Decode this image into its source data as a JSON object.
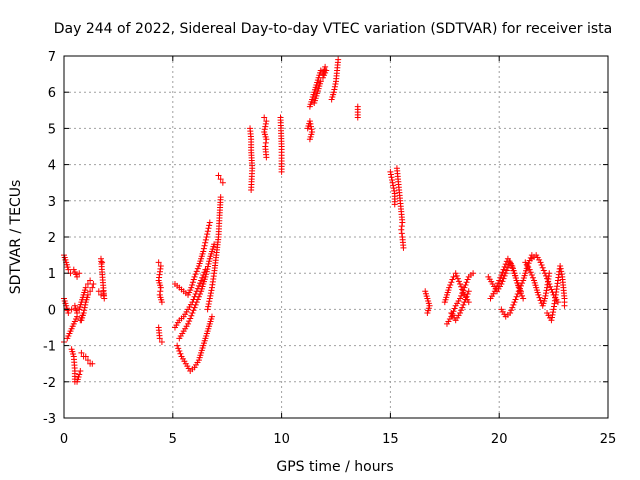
{
  "chart_data": {
    "type": "scatter",
    "title": "Day 244 of 2022, Sidereal Day-to-day VTEC variation (SDTVAR) for receiver ista",
    "xlabel": "GPS time / hours",
    "ylabel": "SDTVAR / TECUs",
    "xlim": [
      0,
      25
    ],
    "ylim": [
      -3,
      7
    ],
    "xticks": [
      "0",
      "5",
      "10",
      "15",
      "20",
      "25"
    ],
    "yticks": [
      "-3",
      "-2",
      "-1",
      "0",
      "1",
      "2",
      "3",
      "4",
      "5",
      "6",
      "7"
    ],
    "grid": true,
    "marker": "plus",
    "color": "#ff0000",
    "series": [
      {
        "name": "SDTVAR",
        "segments": [
          [
            [
              0.0,
              1.5
            ],
            [
              0.1,
              1.3
            ],
            [
              0.2,
              1.1
            ],
            [
              0.3,
              1.0
            ],
            [
              0.45,
              1.1
            ],
            [
              0.6,
              0.9
            ],
            [
              0.7,
              1.0
            ]
          ],
          [
            [
              0.0,
              0.3
            ],
            [
              0.1,
              0.1
            ],
            [
              0.2,
              -0.1
            ],
            [
              0.35,
              0.0
            ],
            [
              0.5,
              0.1
            ],
            [
              0.6,
              -0.1
            ]
          ],
          [
            [
              0.0,
              -0.9
            ],
            [
              0.15,
              -0.8
            ],
            [
              0.3,
              -0.6
            ],
            [
              0.45,
              -0.4
            ],
            [
              0.6,
              -0.2
            ],
            [
              0.75,
              -0.3
            ],
            [
              0.9,
              -0.1
            ]
          ],
          [
            [
              0.35,
              -1.1
            ],
            [
              0.45,
              -1.3
            ],
            [
              0.5,
              -1.7
            ],
            [
              0.5,
              -2.0
            ],
            [
              0.6,
              -2.0
            ],
            [
              0.7,
              -1.8
            ],
            [
              0.75,
              -1.7
            ]
          ],
          [
            [
              0.7,
              0.0
            ],
            [
              0.8,
              0.2
            ],
            [
              0.9,
              0.4
            ],
            [
              1.0,
              0.6
            ],
            [
              1.1,
              0.7
            ],
            [
              1.2,
              0.8
            ],
            [
              1.35,
              0.7
            ]
          ],
          [
            [
              0.8,
              -0.3
            ],
            [
              0.9,
              -0.1
            ],
            [
              1.0,
              0.2
            ],
            [
              1.1,
              0.4
            ],
            [
              1.2,
              0.5
            ],
            [
              1.3,
              0.6
            ]
          ],
          [
            [
              0.8,
              -1.2
            ],
            [
              0.9,
              -1.3
            ],
            [
              1.0,
              -1.3
            ],
            [
              1.1,
              -1.4
            ],
            [
              1.2,
              -1.5
            ],
            [
              1.3,
              -1.5
            ]
          ],
          [
            [
              1.6,
              0.5
            ],
            [
              1.7,
              0.4
            ],
            [
              1.8,
              0.5
            ],
            [
              1.85,
              0.3
            ],
            [
              1.7,
              1.4
            ],
            [
              1.75,
              1.3
            ]
          ],
          [
            [
              4.35,
              1.3
            ],
            [
              4.45,
              1.2
            ],
            [
              4.35,
              0.8
            ],
            [
              4.45,
              0.6
            ],
            [
              4.4,
              0.4
            ],
            [
              4.5,
              0.2
            ]
          ],
          [
            [
              4.35,
              -0.5
            ],
            [
              4.4,
              -0.8
            ],
            [
              4.5,
              -0.9
            ]
          ],
          [
            [
              5.1,
              0.7
            ],
            [
              5.3,
              0.6
            ],
            [
              5.5,
              0.5
            ],
            [
              5.7,
              0.4
            ],
            [
              5.85,
              0.6
            ],
            [
              6.0,
              0.9
            ],
            [
              6.2,
              1.2
            ],
            [
              6.4,
              1.6
            ],
            [
              6.55,
              2.0
            ],
            [
              6.7,
              2.4
            ]
          ],
          [
            [
              5.1,
              -0.5
            ],
            [
              5.3,
              -0.3
            ],
            [
              5.5,
              -0.2
            ],
            [
              5.7,
              0.0
            ],
            [
              5.9,
              0.2
            ],
            [
              6.1,
              0.5
            ],
            [
              6.3,
              0.8
            ],
            [
              6.5,
              1.1
            ]
          ],
          [
            [
              5.2,
              -1.0
            ],
            [
              5.4,
              -1.3
            ],
            [
              5.6,
              -1.5
            ],
            [
              5.8,
              -1.7
            ],
            [
              6.0,
              -1.6
            ],
            [
              6.2,
              -1.4
            ],
            [
              6.4,
              -1.0
            ],
            [
              6.6,
              -0.6
            ],
            [
              6.8,
              -0.2
            ]
          ],
          [
            [
              5.3,
              -0.8
            ],
            [
              5.5,
              -0.6
            ],
            [
              5.7,
              -0.4
            ],
            [
              5.9,
              -0.1
            ],
            [
              6.1,
              0.2
            ],
            [
              6.3,
              0.5
            ],
            [
              6.5,
              0.9
            ],
            [
              6.7,
              1.4
            ],
            [
              6.9,
              1.8
            ]
          ],
          [
            [
              6.6,
              0.0
            ],
            [
              6.7,
              0.3
            ],
            [
              6.8,
              0.6
            ],
            [
              6.9,
              1.0
            ],
            [
              7.0,
              1.5
            ],
            [
              7.1,
              2.0
            ],
            [
              7.15,
              2.6
            ],
            [
              7.2,
              3.1
            ]
          ],
          [
            [
              7.1,
              3.7
            ],
            [
              7.2,
              3.6
            ],
            [
              7.3,
              3.5
            ]
          ],
          [
            [
              8.55,
              5.0
            ],
            [
              8.6,
              4.7
            ],
            [
              8.6,
              4.4
            ],
            [
              8.65,
              3.9
            ],
            [
              8.6,
              3.3
            ]
          ],
          [
            [
              9.2,
              5.3
            ],
            [
              9.3,
              5.2
            ],
            [
              9.2,
              4.9
            ],
            [
              9.3,
              4.7
            ],
            [
              9.25,
              4.5
            ],
            [
              9.3,
              4.2
            ]
          ],
          [
            [
              9.95,
              5.3
            ],
            [
              10.0,
              4.5
            ],
            [
              10.0,
              4.1
            ],
            [
              10.0,
              3.8
            ]
          ],
          [
            [
              11.2,
              5.0
            ],
            [
              11.3,
              5.2
            ],
            [
              11.4,
              4.9
            ],
            [
              11.3,
              4.7
            ]
          ],
          [
            [
              11.3,
              5.6
            ],
            [
              11.4,
              5.8
            ],
            [
              11.5,
              6.0
            ],
            [
              11.6,
              6.2
            ],
            [
              11.7,
              6.4
            ],
            [
              11.8,
              6.6
            ],
            [
              11.9,
              6.5
            ],
            [
              12.0,
              6.7
            ]
          ],
          [
            [
              11.5,
              5.7
            ],
            [
              11.6,
              5.9
            ],
            [
              11.7,
              6.1
            ],
            [
              11.8,
              6.3
            ],
            [
              11.9,
              6.4
            ],
            [
              12.05,
              6.6
            ]
          ],
          [
            [
              12.3,
              5.8
            ],
            [
              12.4,
              6.0
            ],
            [
              12.5,
              6.3
            ],
            [
              12.6,
              6.9
            ]
          ],
          [
            [
              13.5,
              5.6
            ],
            [
              13.5,
              5.3
            ]
          ],
          [
            [
              15.0,
              3.8
            ],
            [
              15.1,
              3.5
            ],
            [
              15.2,
              3.2
            ],
            [
              15.2,
              2.9
            ]
          ],
          [
            [
              15.3,
              3.9
            ],
            [
              15.35,
              3.6
            ],
            [
              15.4,
              3.3
            ],
            [
              15.45,
              3.0
            ],
            [
              15.5,
              2.7
            ],
            [
              15.55,
              2.4
            ],
            [
              15.5,
              2.2
            ],
            [
              15.55,
              2.0
            ],
            [
              15.6,
              1.7
            ]
          ],
          [
            [
              16.6,
              0.5
            ],
            [
              16.7,
              0.3
            ],
            [
              16.8,
              0.1
            ],
            [
              16.7,
              -0.1
            ]
          ],
          [
            [
              17.5,
              0.2
            ],
            [
              17.7,
              0.6
            ],
            [
              17.9,
              0.9
            ],
            [
              18.0,
              1.0
            ],
            [
              18.2,
              0.7
            ],
            [
              18.4,
              0.4
            ],
            [
              18.6,
              0.2
            ]
          ],
          [
            [
              17.6,
              -0.4
            ],
            [
              17.8,
              -0.2
            ],
            [
              18.0,
              0.1
            ],
            [
              18.2,
              0.3
            ],
            [
              18.4,
              0.6
            ],
            [
              18.6,
              0.9
            ],
            [
              18.8,
              1.0
            ]
          ],
          [
            [
              17.8,
              -0.1
            ],
            [
              18.0,
              -0.3
            ],
            [
              18.2,
              -0.1
            ],
            [
              18.4,
              0.2
            ],
            [
              18.6,
              0.5
            ]
          ],
          [
            [
              19.5,
              0.9
            ],
            [
              19.7,
              0.7
            ],
            [
              19.9,
              0.5
            ],
            [
              20.1,
              0.7
            ],
            [
              20.3,
              1.0
            ],
            [
              20.5,
              1.3
            ],
            [
              20.7,
              1.0
            ],
            [
              20.9,
              0.6
            ],
            [
              21.1,
              0.3
            ]
          ],
          [
            [
              19.6,
              0.3
            ],
            [
              19.8,
              0.5
            ],
            [
              20.0,
              0.8
            ],
            [
              20.2,
              1.1
            ],
            [
              20.4,
              1.4
            ],
            [
              20.6,
              1.2
            ],
            [
              20.8,
              0.8
            ],
            [
              21.0,
              0.5
            ]
          ],
          [
            [
              20.1,
              0.0
            ],
            [
              20.3,
              -0.2
            ],
            [
              20.5,
              -0.1
            ],
            [
              20.7,
              0.2
            ],
            [
              20.9,
              0.5
            ],
            [
              21.1,
              0.8
            ],
            [
              21.3,
              1.2
            ],
            [
              21.5,
              1.5
            ]
          ],
          [
            [
              21.2,
              1.3
            ],
            [
              21.4,
              1.1
            ],
            [
              21.6,
              0.8
            ],
            [
              21.8,
              0.4
            ],
            [
              22.0,
              0.1
            ],
            [
              22.1,
              0.3
            ],
            [
              22.2,
              0.6
            ],
            [
              22.3,
              1.0
            ]
          ],
          [
            [
              21.5,
              1.4
            ],
            [
              21.7,
              1.5
            ],
            [
              21.9,
              1.3
            ],
            [
              22.1,
              1.0
            ],
            [
              22.3,
              0.7
            ],
            [
              22.5,
              0.4
            ],
            [
              22.7,
              0.2
            ]
          ],
          [
            [
              22.2,
              -0.1
            ],
            [
              22.4,
              -0.3
            ],
            [
              22.5,
              0.0
            ],
            [
              22.6,
              0.4
            ],
            [
              22.7,
              0.8
            ],
            [
              22.8,
              1.2
            ],
            [
              22.9,
              0.9
            ],
            [
              23.0,
              0.3
            ],
            [
              23.0,
              0.1
            ]
          ]
        ]
      }
    ]
  }
}
